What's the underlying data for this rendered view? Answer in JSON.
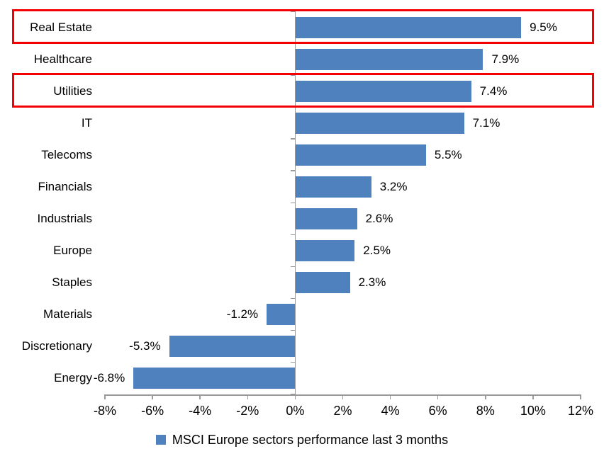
{
  "chart_data": {
    "type": "bar",
    "orientation": "horizontal",
    "categories": [
      "Real Estate",
      "Healthcare",
      "Utilities",
      "IT",
      "Telecoms",
      "Financials",
      "Industrials",
      "Europe",
      "Staples",
      "Materials",
      "Discretionary",
      "Energy"
    ],
    "values": [
      9.5,
      7.9,
      7.4,
      7.1,
      5.5,
      3.2,
      2.6,
      2.5,
      2.3,
      -1.2,
      -5.3,
      -6.8
    ],
    "data_labels": [
      "9.5%",
      "7.9%",
      "7.4%",
      "7.1%",
      "5.5%",
      "3.2%",
      "2.6%",
      "2.5%",
      "2.3%",
      "-1.2%",
      "-5.3%",
      "-6.8%"
    ],
    "xlim": [
      -8,
      12
    ],
    "x_tick_step": 2,
    "x_tick_values": [
      -8,
      -6,
      -4,
      -2,
      0,
      2,
      4,
      6,
      8,
      10,
      12
    ],
    "x_tick_labels": [
      "-8%",
      "-6%",
      "-4%",
      "-2%",
      "0%",
      "2%",
      "4%",
      "6%",
      "8%",
      "10%",
      "12%"
    ],
    "grid": false,
    "legend": {
      "label": "MSCI Europe sectors performance last 3 months",
      "position": "bottom"
    },
    "colors": {
      "bar": "#4e81bd",
      "axis": "#9a9a9a",
      "highlight": "#f40000",
      "text": "#000000"
    },
    "annotations": {
      "highlighted_categories": [
        "Real Estate",
        "Utilities"
      ],
      "highlight_style": "red-outline-box"
    }
  }
}
